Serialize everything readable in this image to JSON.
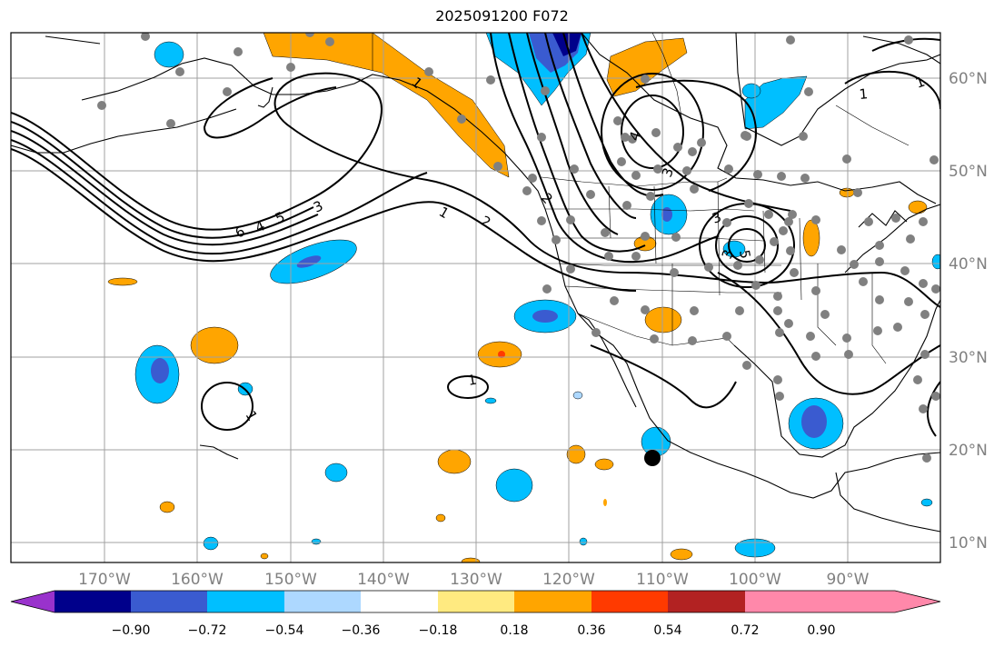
{
  "title": "2025091200 F072",
  "longitude_labels": [
    "170°W",
    "160°W",
    "150°W",
    "140°W",
    "130°W",
    "120°W",
    "110°W",
    "100°W",
    "90°W"
  ],
  "latitude_labels": [
    "60°N",
    "50°N",
    "40°N",
    "30°N",
    "20°N",
    "10°N"
  ],
  "contour_labels": [
    "6",
    "4",
    "5",
    "3",
    "1",
    "2",
    "1",
    "2",
    "3",
    "4",
    "3",
    "3",
    "5",
    "1",
    "1",
    "1",
    "1"
  ],
  "colorbar": {
    "ticks": [
      "−0.90",
      "−0.72",
      "−0.54",
      "−0.36",
      "−0.18",
      "0.18",
      "0.36",
      "0.54",
      "0.72",
      "0.90"
    ],
    "colors": [
      "#9932cc",
      "#00008b",
      "#3a5bd0",
      "#00bfff",
      "#add8ff",
      "#ffffff",
      "#ffea80",
      "#ffa500",
      "#ff3a00",
      "#b22222",
      "#ff88aa"
    ]
  },
  "colors": {
    "frame": "#000000",
    "grid": "#a0a0a0",
    "stations": "#808080",
    "coast": "#000000"
  }
}
